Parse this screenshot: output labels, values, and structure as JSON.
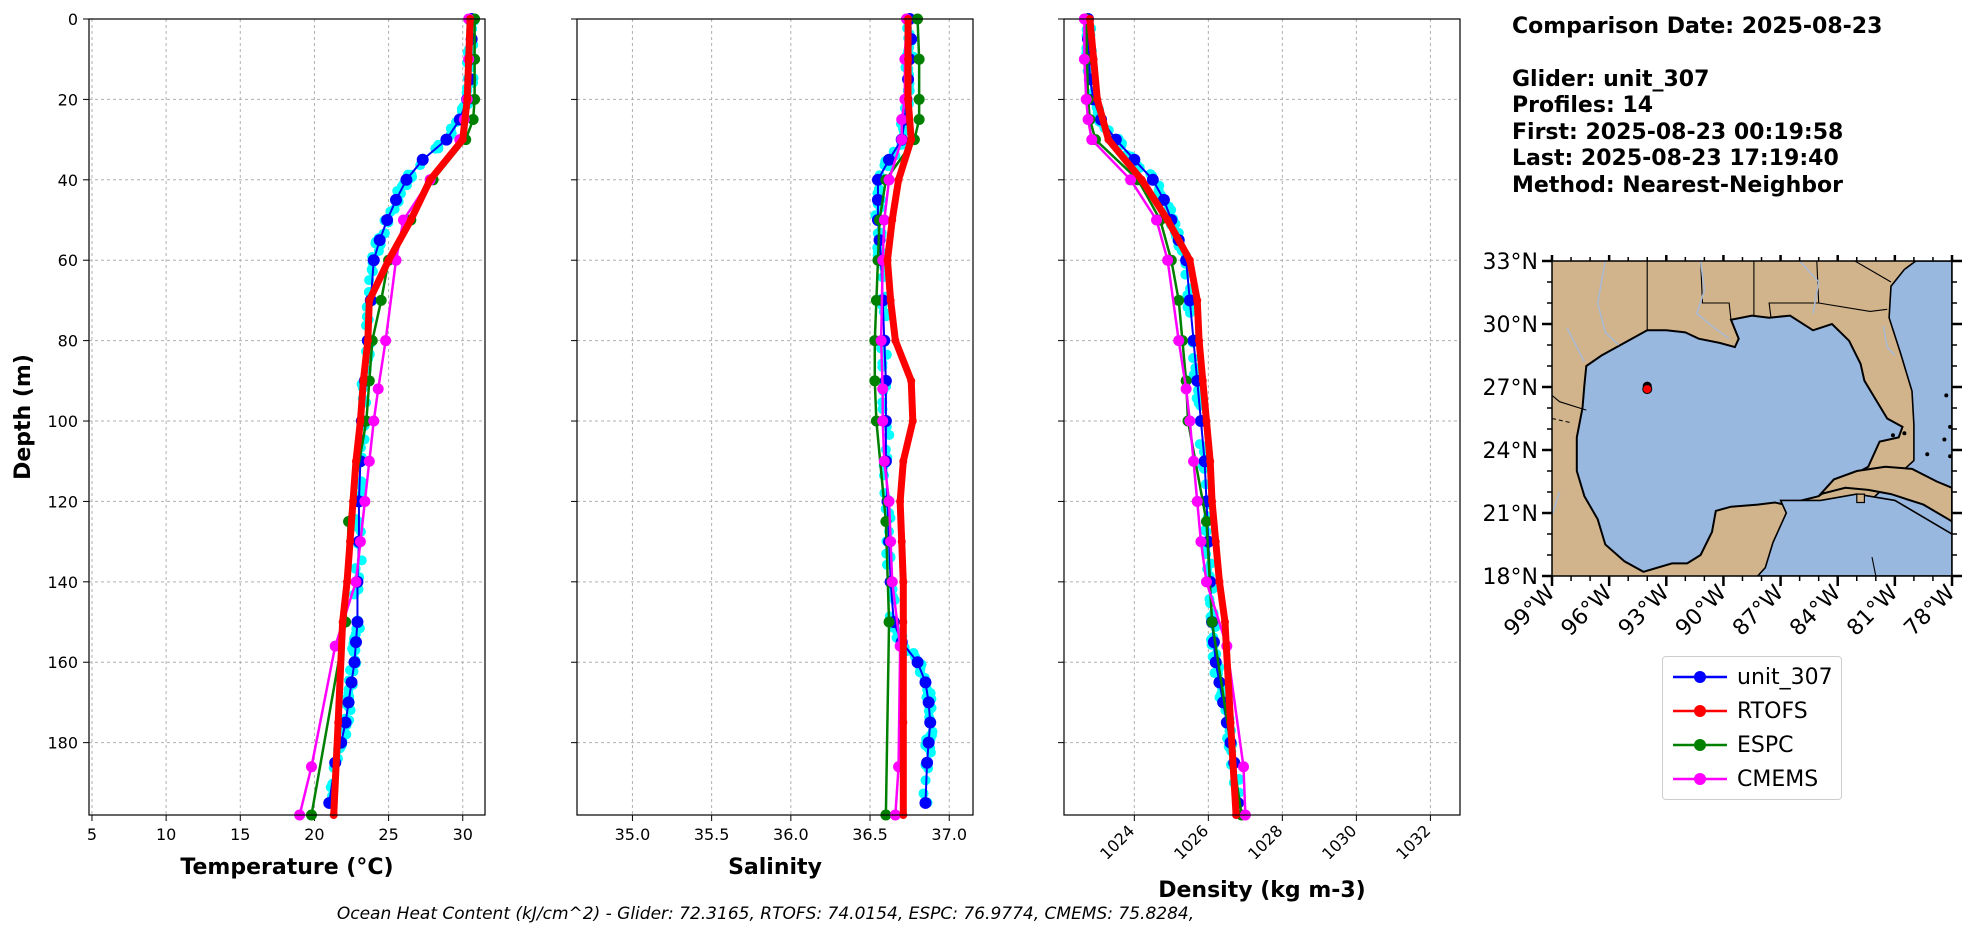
{
  "info": {
    "comparison_date": "Comparison Date: 2025-08-23",
    "glider": "Glider: unit_307",
    "profiles": "Profiles: 14",
    "first": "First: 2025-08-23 00:19:58",
    "last": "Last: 2025-08-23 17:19:40",
    "method": "Method: Nearest-Neighbor"
  },
  "footer": "Ocean Heat Content (kJ/cm^2) - Glider: 72.3165,  RTOFS: 74.0154,  ESPC: 76.9774,  CMEMS: 75.8284,",
  "colors": {
    "unit_307": "#0000ff",
    "RTOFS": "#ff0000",
    "ESPC": "#008000",
    "CMEMS": "#ff00ff",
    "glider_scatter": "#00ffff",
    "land": "#d2b48c",
    "ocean": "#99b8e0",
    "rivers": "#aab8d0"
  },
  "legend": [
    {
      "name": "unit_307",
      "color": "#0000ff"
    },
    {
      "name": "RTOFS",
      "color": "#ff0000"
    },
    {
      "name": "ESPC",
      "color": "#008000"
    },
    {
      "name": "CMEMS",
      "color": "#ff00ff"
    }
  ],
  "chart_data": [
    {
      "type": "line",
      "xlabel": "Temperature (°C)",
      "ylabel": "Depth (m)",
      "xlim": [
        4.8,
        31.5
      ],
      "ylim": [
        198,
        0
      ],
      "xticks": [
        "5",
        "10",
        "15",
        "20",
        "25",
        "30"
      ],
      "yticks": [
        "0",
        "20",
        "40",
        "60",
        "80",
        "100",
        "120",
        "140",
        "160",
        "180"
      ],
      "grid": true,
      "series": [
        {
          "name": "unit_307",
          "x": [
            30.6,
            30.6,
            30.5,
            30.5,
            30.3,
            29.8,
            28.9,
            27.3,
            26.2,
            25.5,
            24.9,
            24.4,
            24.0,
            23.8,
            23.6,
            23.4,
            23.2,
            23.1,
            23.0,
            23.0,
            22.9,
            22.9,
            22.8,
            22.7,
            22.5,
            22.3,
            22.1,
            21.8,
            21.4,
            21.0
          ],
          "y": [
            0,
            5,
            10,
            15,
            20,
            25,
            30,
            35,
            40,
            45,
            50,
            55,
            60,
            70,
            80,
            90,
            100,
            110,
            120,
            130,
            140,
            150,
            155,
            160,
            165,
            170,
            175,
            180,
            185,
            195
          ]
        },
        {
          "name": "RTOFS",
          "x": [
            30.5,
            30.4,
            30.3,
            30.0,
            27.8,
            26.5,
            25.0,
            23.7,
            23.6,
            23.3,
            23.1,
            22.8,
            22.6,
            22.4,
            22.2,
            21.9,
            21.6,
            21.3
          ],
          "y": [
            0,
            10,
            20,
            30,
            40,
            50,
            60,
            70,
            80,
            90,
            100,
            110,
            120,
            130,
            140,
            150,
            175,
            198
          ]
        },
        {
          "name": "ESPC",
          "x": [
            30.8,
            30.8,
            30.8,
            30.7,
            30.2,
            28.0,
            26.5,
            25.0,
            24.5,
            23.9,
            23.7,
            23.5,
            22.3,
            22.1,
            19.8
          ],
          "y": [
            0,
            10,
            20,
            25,
            30,
            40,
            50,
            60,
            70,
            80,
            90,
            100,
            125,
            150,
            198
          ]
        },
        {
          "name": "CMEMS",
          "x": [
            30.4,
            30.4,
            30.3,
            30.1,
            29.8,
            27.8,
            26.0,
            25.5,
            24.8,
            24.3,
            24.0,
            23.7,
            23.4,
            23.1,
            22.8,
            21.4,
            19.8,
            19.0
          ],
          "y": [
            0,
            10,
            20,
            25,
            30,
            40,
            50,
            60,
            80,
            92,
            100,
            110,
            120,
            130,
            140,
            156,
            186,
            198
          ]
        }
      ]
    },
    {
      "type": "line",
      "xlabel": "Salinity",
      "xlim": [
        34.65,
        37.15
      ],
      "ylim": [
        198,
        0
      ],
      "xticks": [
        "35.0",
        "35.5",
        "36.0",
        "36.5",
        "37.0"
      ],
      "grid": true,
      "series": [
        {
          "name": "unit_307",
          "x": [
            36.75,
            36.76,
            36.75,
            36.74,
            36.73,
            36.72,
            36.7,
            36.62,
            36.55,
            36.55,
            36.55,
            36.56,
            36.57,
            36.58,
            36.59,
            36.6,
            36.6,
            36.6,
            36.61,
            36.62,
            36.63,
            36.65,
            36.7,
            36.8,
            36.85,
            36.87,
            36.88,
            36.87,
            36.86,
            36.85
          ],
          "y": [
            0,
            5,
            10,
            15,
            20,
            25,
            30,
            35,
            40,
            45,
            50,
            55,
            60,
            70,
            80,
            90,
            100,
            110,
            120,
            130,
            140,
            150,
            155,
            160,
            165,
            170,
            175,
            180,
            185,
            195
          ]
        },
        {
          "name": "RTOFS",
          "x": [
            36.74,
            36.74,
            36.74,
            36.76,
            36.68,
            36.64,
            36.61,
            36.63,
            36.66,
            36.76,
            36.77,
            36.71,
            36.69,
            36.7,
            36.71,
            36.71,
            36.71,
            36.71
          ],
          "y": [
            0,
            10,
            20,
            30,
            40,
            50,
            60,
            70,
            80,
            90,
            100,
            110,
            120,
            130,
            140,
            150,
            175,
            198
          ]
        },
        {
          "name": "ESPC",
          "x": [
            36.8,
            36.81,
            36.81,
            36.81,
            36.78,
            36.6,
            36.56,
            36.55,
            36.54,
            36.53,
            36.53,
            36.54,
            36.6,
            36.62,
            36.6
          ],
          "y": [
            0,
            10,
            20,
            25,
            30,
            40,
            50,
            60,
            70,
            80,
            90,
            100,
            125,
            150,
            198
          ]
        },
        {
          "name": "CMEMS",
          "x": [
            36.73,
            36.72,
            36.72,
            36.7,
            36.7,
            36.62,
            36.59,
            36.58,
            36.57,
            36.58,
            36.58,
            36.59,
            36.62,
            36.63,
            36.64,
            36.69,
            36.68,
            36.66
          ],
          "y": [
            0,
            10,
            20,
            25,
            30,
            40,
            50,
            60,
            80,
            92,
            100,
            110,
            120,
            130,
            140,
            156,
            186,
            198
          ]
        }
      ]
    },
    {
      "type": "line",
      "xlabel": "Density (kg m-3)",
      "xlim": [
        1022.1,
        1032.8
      ],
      "ylim": [
        198,
        0
      ],
      "xticks": [
        "1024",
        "1026",
        "1028",
        "1030",
        "1032"
      ],
      "grid": true,
      "series": [
        {
          "name": "unit_307",
          "x": [
            1022.75,
            1022.75,
            1022.78,
            1022.8,
            1022.9,
            1023.1,
            1023.5,
            1024.0,
            1024.5,
            1024.8,
            1025.0,
            1025.2,
            1025.4,
            1025.5,
            1025.6,
            1025.7,
            1025.8,
            1025.9,
            1025.95,
            1026.0,
            1026.05,
            1026.1,
            1026.15,
            1026.2,
            1026.3,
            1026.4,
            1026.5,
            1026.6,
            1026.7,
            1026.8
          ],
          "y": [
            0,
            5,
            10,
            15,
            20,
            25,
            30,
            35,
            40,
            45,
            50,
            55,
            60,
            70,
            80,
            90,
            100,
            110,
            120,
            130,
            140,
            150,
            155,
            160,
            165,
            170,
            175,
            180,
            185,
            195
          ]
        },
        {
          "name": "RTOFS",
          "x": [
            1022.8,
            1022.9,
            1023.0,
            1023.3,
            1024.2,
            1024.9,
            1025.5,
            1025.7,
            1025.75,
            1025.85,
            1025.95,
            1026.05,
            1026.1,
            1026.2,
            1026.3,
            1026.45,
            1026.6,
            1026.75
          ],
          "y": [
            0,
            10,
            20,
            30,
            40,
            50,
            60,
            70,
            80,
            90,
            100,
            110,
            120,
            130,
            140,
            150,
            175,
            198
          ]
        },
        {
          "name": "ESPC",
          "x": [
            1022.7,
            1022.72,
            1022.75,
            1022.8,
            1022.95,
            1024.1,
            1024.7,
            1025.0,
            1025.2,
            1025.3,
            1025.4,
            1025.45,
            1025.95,
            1026.1,
            1026.9
          ],
          "y": [
            0,
            10,
            20,
            25,
            30,
            40,
            50,
            60,
            70,
            80,
            90,
            100,
            125,
            150,
            198
          ]
        },
        {
          "name": "CMEMS",
          "x": [
            1022.65,
            1022.65,
            1022.7,
            1022.75,
            1022.85,
            1023.9,
            1024.6,
            1024.9,
            1025.2,
            1025.4,
            1025.5,
            1025.6,
            1025.7,
            1025.8,
            1025.95,
            1026.5,
            1026.95,
            1027.0
          ],
          "y": [
            0,
            10,
            20,
            25,
            30,
            40,
            50,
            60,
            80,
            92,
            100,
            110,
            120,
            130,
            140,
            156,
            186,
            198
          ]
        }
      ]
    }
  ],
  "map": {
    "lat_ticks": [
      "33°N",
      "30°N",
      "27°N",
      "24°N",
      "21°N",
      "18°N"
    ],
    "lon_ticks": [
      "99°W",
      "96°W",
      "93°W",
      "90°W",
      "87°W",
      "84°W",
      "81°W",
      "78°W"
    ],
    "glider_position": {
      "lon": -94.0,
      "lat": 26.9
    }
  }
}
